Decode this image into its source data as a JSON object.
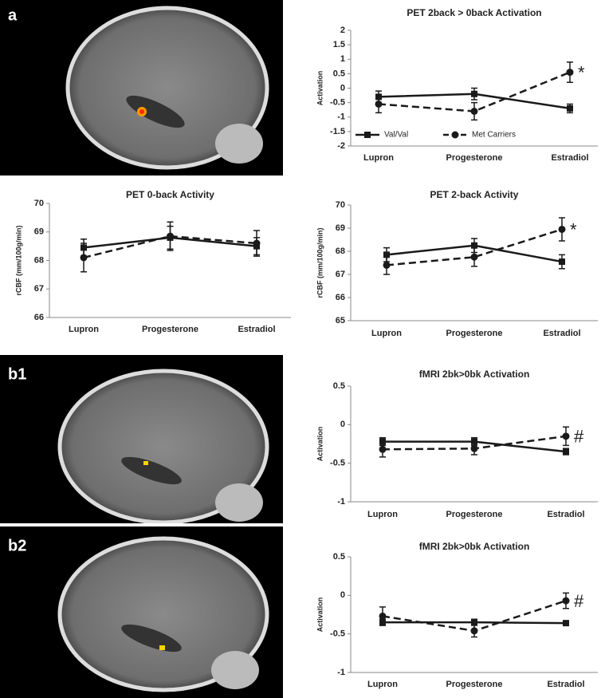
{
  "panel_labels": [
    "a",
    "b1",
    "b2"
  ],
  "chart_data": [
    {
      "type": "line",
      "title": "PET 2back > 0back Activation",
      "ylabel": "Activation",
      "categories": [
        "Lupron",
        "Progesterone",
        "Estradiol"
      ],
      "ylim": [
        -2,
        2
      ],
      "yticks": [
        -2,
        -1.5,
        -1,
        -0.5,
        0,
        0.5,
        1,
        1.5,
        2
      ],
      "legend": "lower left",
      "annotation": "*",
      "series": [
        {
          "name": "Val/Val",
          "color": "#1a1a1a",
          "dash": false,
          "marker": "square",
          "values": [
            -0.3,
            -0.2,
            -0.7
          ],
          "errors": [
            0.2,
            0.2,
            0.15
          ]
        },
        {
          "name": "Met Carriers",
          "color": "#1a1a1a",
          "dash": true,
          "marker": "circle",
          "values": [
            -0.55,
            -0.8,
            0.55
          ],
          "errors": [
            0.3,
            0.3,
            0.35
          ]
        }
      ]
    },
    {
      "type": "line",
      "title": "PET 0-back Activity",
      "ylabel": "rCBF (mm/100g/min)",
      "categories": [
        "Lupron",
        "Progesterone",
        "Estradiol"
      ],
      "ylim": [
        66,
        70
      ],
      "yticks": [
        66,
        67,
        68,
        69,
        70
      ],
      "series": [
        {
          "color": "#1a1a1a",
          "dash": false,
          "marker": "square",
          "values": [
            68.45,
            68.8,
            68.5
          ],
          "errors": [
            0.3,
            0.4,
            0.3
          ]
        },
        {
          "color": "#1a1a1a",
          "dash": true,
          "marker": "circle",
          "values": [
            68.1,
            68.85,
            68.6
          ],
          "errors": [
            0.5,
            0.5,
            0.45
          ]
        }
      ]
    },
    {
      "type": "line",
      "title": "PET 2-back Activity",
      "ylabel": "rCBF (mm/100g/min)",
      "categories": [
        "Lupron",
        "Progesterone",
        "Estradiol"
      ],
      "ylim": [
        65,
        70
      ],
      "yticks": [
        65,
        66,
        67,
        68,
        69,
        70
      ],
      "annotation": "*",
      "series": [
        {
          "color": "#1a1a1a",
          "dash": false,
          "marker": "square",
          "values": [
            67.85,
            68.25,
            67.55
          ],
          "errors": [
            0.3,
            0.3,
            0.3
          ]
        },
        {
          "color": "#1a1a1a",
          "dash": true,
          "marker": "circle",
          "values": [
            67.4,
            67.75,
            68.95
          ],
          "errors": [
            0.4,
            0.4,
            0.5
          ]
        }
      ]
    },
    {
      "type": "line",
      "title": "fMRI 2bk>0bk Activation",
      "ylabel": "Activation",
      "categories": [
        "Lupron",
        "Progesterone",
        "Estradiol"
      ],
      "ylim": [
        -1,
        0.5
      ],
      "yticks": [
        -1,
        -0.5,
        0,
        0.5
      ],
      "annotation": "#",
      "series": [
        {
          "color": "#1a1a1a",
          "dash": false,
          "marker": "square",
          "values": [
            -0.22,
            -0.22,
            -0.35
          ],
          "errors": [
            0.05,
            0.05,
            0.04
          ]
        },
        {
          "color": "#1a1a1a",
          "dash": true,
          "marker": "circle",
          "values": [
            -0.32,
            -0.31,
            -0.15
          ],
          "errors": [
            0.1,
            0.08,
            0.12
          ]
        }
      ]
    },
    {
      "type": "line",
      "title": "fMRI 2bk>0bk Activation",
      "ylabel": "Activation",
      "categories": [
        "Lupron",
        "Progesterone",
        "Estradiol"
      ],
      "ylim": [
        -1,
        0.5
      ],
      "yticks": [
        -1,
        -0.5,
        0,
        0.5
      ],
      "annotation": "#",
      "series": [
        {
          "color": "#1a1a1a",
          "dash": false,
          "marker": "square",
          "values": [
            -0.35,
            -0.35,
            -0.36
          ],
          "errors": [
            0.04,
            0.04,
            0.03
          ]
        },
        {
          "color": "#1a1a1a",
          "dash": true,
          "marker": "circle",
          "values": [
            -0.27,
            -0.46,
            -0.07
          ],
          "errors": [
            0.12,
            0.08,
            0.1
          ]
        }
      ]
    }
  ]
}
